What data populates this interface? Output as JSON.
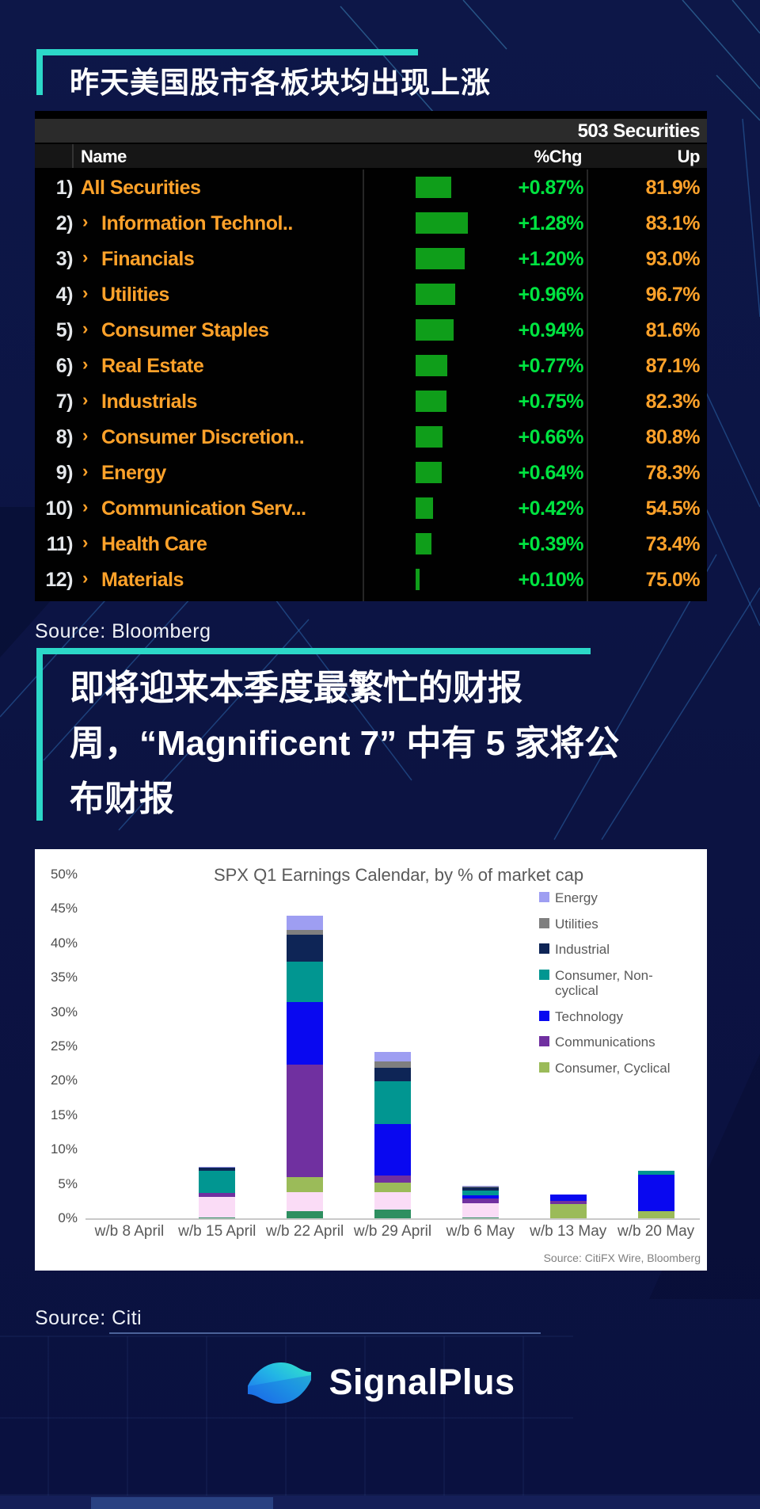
{
  "page": {
    "accent_color": "#2cd8c8",
    "background_color": "#0c1342"
  },
  "section1": {
    "headline": "昨天美国股市各板块均出现上涨",
    "source": "Source: Bloomberg",
    "table": {
      "securities_count": "503 Securities",
      "columns": {
        "name": "Name",
        "chg": "%Chg",
        "up": "Up"
      },
      "max_chg": 1.28,
      "bar_color": "#0f9e1a",
      "rows": [
        {
          "num": "1)",
          "arrow": "",
          "name": "All Securities",
          "chg": "+0.87%",
          "chg_value": 0.87,
          "up": "81.9%"
        },
        {
          "num": "2)",
          "arrow": "›",
          "name": "Information Technol..",
          "chg": "+1.28%",
          "chg_value": 1.28,
          "up": "83.1%"
        },
        {
          "num": "3)",
          "arrow": "›",
          "name": "Financials",
          "chg": "+1.20%",
          "chg_value": 1.2,
          "up": "93.0%"
        },
        {
          "num": "4)",
          "arrow": "›",
          "name": "Utilities",
          "chg": "+0.96%",
          "chg_value": 0.96,
          "up": "96.7%"
        },
        {
          "num": "5)",
          "arrow": "›",
          "name": "Consumer Staples",
          "chg": "+0.94%",
          "chg_value": 0.94,
          "up": "81.6%"
        },
        {
          "num": "6)",
          "arrow": "›",
          "name": "Real Estate",
          "chg": "+0.77%",
          "chg_value": 0.77,
          "up": "87.1%"
        },
        {
          "num": "7)",
          "arrow": "›",
          "name": "Industrials",
          "chg": "+0.75%",
          "chg_value": 0.75,
          "up": "82.3%"
        },
        {
          "num": "8)",
          "arrow": "›",
          "name": "Consumer Discretion..",
          "chg": "+0.66%",
          "chg_value": 0.66,
          "up": "80.8%"
        },
        {
          "num": "9)",
          "arrow": "›",
          "name": "Energy",
          "chg": "+0.64%",
          "chg_value": 0.64,
          "up": "78.3%"
        },
        {
          "num": "10)",
          "arrow": "›",
          "name": "Communication Serv...",
          "chg": "+0.42%",
          "chg_value": 0.42,
          "up": "54.5%"
        },
        {
          "num": "11)",
          "arrow": "›",
          "name": "Health Care",
          "chg": "+0.39%",
          "chg_value": 0.39,
          "up": "73.4%"
        },
        {
          "num": "12)",
          "arrow": "›",
          "name": "Materials",
          "chg": "+0.10%",
          "chg_value": 0.1,
          "up": "75.0%"
        }
      ]
    }
  },
  "section2": {
    "headline": "即将迎来本季度最繁忙的财报\n周，“Magnificent 7” 中有 5 家将公\n布财报",
    "source": "Source: Citi"
  },
  "chart_data": {
    "type": "bar",
    "stacked": true,
    "title": "SPX Q1 Earnings Calendar, by % of market cap",
    "xlabel": "",
    "ylabel": "",
    "ylim": [
      0,
      50
    ],
    "ytick_step": 5,
    "yticks": [
      "50%",
      "45%",
      "40%",
      "35%",
      "30%",
      "25%",
      "20%",
      "15%",
      "10%",
      "5%",
      "0%"
    ],
    "grid": false,
    "legend_position": "right",
    "categories": [
      "w/b 8 April",
      "w/b 15 April",
      "w/b 22 April",
      "w/b 29 April",
      "w/b 6 May",
      "w/b 13 May",
      "w/b 20 May"
    ],
    "legend": [
      {
        "label": "Energy",
        "color": "#9e9ef2"
      },
      {
        "label": "Utilities",
        "color": "#7f7f7f"
      },
      {
        "label": "Industrial",
        "color": "#0e2556"
      },
      {
        "label": "Consumer, Non-cyclical",
        "color": "#019691"
      },
      {
        "label": "Technology",
        "color": "#0908f0"
      },
      {
        "label": "Communications",
        "color": "#7030a0"
      },
      {
        "label": "Consumer, Cyclical",
        "color": "#9bbb59"
      }
    ],
    "series": [
      {
        "name": "Unlabeled (dark green)",
        "color": "#2e8f60",
        "values": [
          0,
          0.15,
          1.0,
          1.3,
          0.1,
          0,
          0
        ]
      },
      {
        "name": "Unlabeled (pink)",
        "color": "#fadcf6",
        "values": [
          0,
          3.0,
          2.8,
          2.5,
          2.1,
          0,
          0
        ]
      },
      {
        "name": "Consumer, Cyclical",
        "color": "#9bbb59",
        "values": [
          0,
          0,
          2.2,
          1.4,
          0,
          2.1,
          1.1
        ]
      },
      {
        "name": "Communications",
        "color": "#7030a0",
        "values": [
          0,
          0.55,
          16.4,
          1.0,
          0.7,
          0.4,
          0
        ]
      },
      {
        "name": "Technology",
        "color": "#0908f0",
        "values": [
          0,
          0,
          9.0,
          7.5,
          0.5,
          1.0,
          5.3
        ]
      },
      {
        "name": "Consumer, Non-cyclical",
        "color": "#019691",
        "values": [
          0,
          3.2,
          5.9,
          6.2,
          0.6,
          0,
          0.5
        ]
      },
      {
        "name": "Industrial",
        "color": "#0e2556",
        "values": [
          0,
          0.45,
          4.0,
          2.0,
          0.5,
          0,
          0
        ]
      },
      {
        "name": "Utilities",
        "color": "#7f7f7f",
        "values": [
          0,
          0.05,
          0.6,
          0.9,
          0.1,
          0,
          0
        ]
      },
      {
        "name": "Energy",
        "color": "#9e9ef2",
        "values": [
          0,
          0.1,
          2.1,
          1.4,
          0.1,
          0,
          0
        ]
      }
    ],
    "source_note": "Source: CitiFX Wire, Bloomberg"
  },
  "footer": {
    "logo_text": "SignalPlus"
  }
}
